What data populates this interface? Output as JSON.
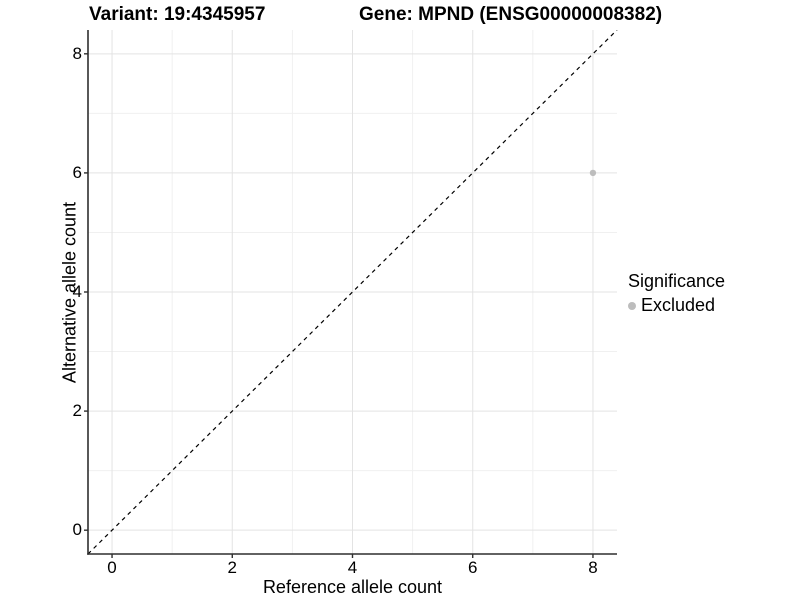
{
  "titles": {
    "variant": "Variant: 19:4345957",
    "gene": "Gene: MPND (ENSG00000008382)"
  },
  "axes": {
    "x_label": "Reference allele count",
    "y_label": "Alternative allele count"
  },
  "legend": {
    "title": "Significance",
    "items": [
      {
        "label": "Excluded",
        "color": "#bdbdbd"
      }
    ],
    "position": "right"
  },
  "colors": {
    "background": "#ffffff",
    "axis_line": "#2f2f2f",
    "tick_mark": "#2f2f2f",
    "grid_major": "#e3e3e3",
    "grid_minor": "#f0f0f0",
    "reference_line": "#000000",
    "point": "#bdbdbd",
    "text": "#000000"
  },
  "chart_data": {
    "type": "scatter",
    "title": "Variant: 19:4345957 | Gene: MPND (ENSG00000008382)",
    "xlabel": "Reference allele count",
    "ylabel": "Alternative allele count",
    "xlim": [
      -0.4,
      8.4
    ],
    "ylim": [
      -0.4,
      8.4
    ],
    "x_ticks": [
      0,
      2,
      4,
      6,
      8
    ],
    "y_ticks": [
      0,
      2,
      4,
      6,
      8
    ],
    "x_minor": [
      1,
      3,
      5,
      7
    ],
    "y_minor": [
      1,
      3,
      5,
      7
    ],
    "grid": true,
    "legend_position": "right",
    "series": [
      {
        "name": "Excluded",
        "color": "#bdbdbd",
        "points": [
          {
            "x": 8,
            "y": 6
          }
        ]
      }
    ],
    "reference_line": {
      "type": "identity",
      "from": [
        -0.4,
        -0.4
      ],
      "to": [
        8.4,
        8.4
      ],
      "style": "dashed",
      "color": "#000000"
    }
  }
}
